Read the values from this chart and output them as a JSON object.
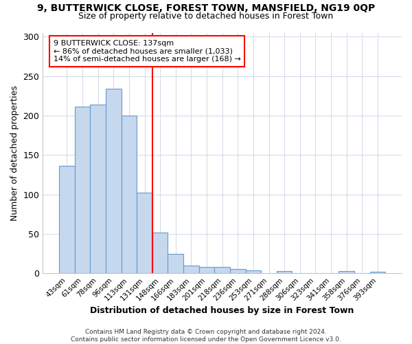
{
  "title1": "9, BUTTERWICK CLOSE, FOREST TOWN, MANSFIELD, NG19 0QP",
  "title2": "Size of property relative to detached houses in Forest Town",
  "xlabel": "Distribution of detached houses by size in Forest Town",
  "ylabel": "Number of detached properties",
  "categories": [
    "43sqm",
    "61sqm",
    "78sqm",
    "96sqm",
    "113sqm",
    "131sqm",
    "148sqm",
    "166sqm",
    "183sqm",
    "201sqm",
    "218sqm",
    "236sqm",
    "253sqm",
    "271sqm",
    "288sqm",
    "306sqm",
    "323sqm",
    "341sqm",
    "358sqm",
    "376sqm",
    "393sqm"
  ],
  "values": [
    136,
    211,
    214,
    234,
    200,
    102,
    52,
    25,
    10,
    8,
    8,
    5,
    4,
    0,
    3,
    0,
    0,
    0,
    3,
    0,
    2
  ],
  "bar_color": "#c5d8ee",
  "bar_edge_color": "#6699cc",
  "property_line_x": 5.5,
  "annotation_text": "9 BUTTERWICK CLOSE: 137sqm\n← 86% of detached houses are smaller (1,033)\n14% of semi-detached houses are larger (168) →",
  "annotation_box_color": "white",
  "annotation_box_edge": "red",
  "vline_color": "red",
  "ylim": [
    0,
    305
  ],
  "yticks": [
    0,
    50,
    100,
    150,
    200,
    250,
    300
  ],
  "footer": "Contains HM Land Registry data © Crown copyright and database right 2024.\nContains public sector information licensed under the Open Government Licence v3.0.",
  "bg_color": "#ffffff",
  "grid_color": "#d0d8e8"
}
